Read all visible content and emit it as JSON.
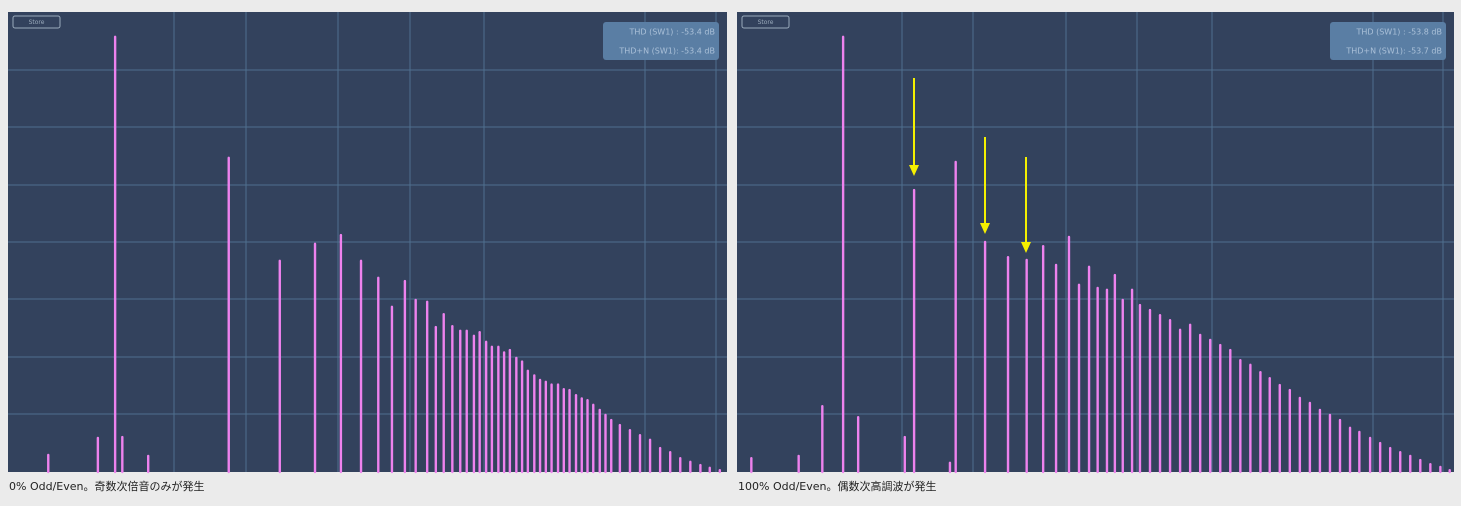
{
  "panels": [
    {
      "store_button": "Store",
      "thd": "THD (SW1) : -53.4 dB",
      "thdn": "THD+N (SW1): -53.4 dB",
      "caption": "0% Odd/Even。奇数次倍音のみが発生",
      "spectrum": {
        "xlim": [
          0,
          100
        ],
        "ylim": [
          0,
          100
        ],
        "x": [
          5.6,
          12.5,
          14.9,
          15.9,
          19.5,
          30.7,
          37.8,
          42.7,
          46.3,
          49.1,
          51.5,
          53.4,
          55.2,
          56.7,
          58.3,
          59.5,
          60.6,
          61.8,
          62.9,
          63.8,
          64.8,
          65.6,
          66.5,
          67.3,
          68.2,
          69.0,
          69.8,
          70.7,
          71.5,
          72.3,
          73.2,
          74.0,
          74.8,
          75.6,
          76.5,
          77.3,
          78.1,
          79.0,
          79.8,
          80.6,
          81.4,
          82.3,
          83.1,
          83.9,
          85.1,
          86.5,
          87.9,
          89.3,
          90.7,
          92.1,
          93.5,
          94.9,
          96.3,
          97.6,
          99.0
        ],
        "values": [
          3.7,
          7.4,
          94.6,
          7.6,
          3.5,
          68.3,
          45.9,
          49.6,
          51.5,
          45.9,
          42.2,
          35.9,
          41.5,
          37.4,
          37.0,
          31.5,
          34.3,
          31.7,
          30.7,
          30.7,
          29.6,
          30.4,
          28.3,
          27.2,
          27.2,
          26.0,
          26.5,
          24.8,
          24.0,
          22.0,
          21.0,
          20.0,
          19.6,
          19.0,
          19.0,
          18.0,
          17.8,
          16.7,
          16.0,
          15.6,
          14.6,
          13.5,
          12.4,
          11.3,
          10.2,
          9.1,
          8.0,
          7.0,
          5.2,
          4.3,
          3.0,
          2.2,
          1.5,
          0.9,
          0.4
        ]
      }
    },
    {
      "store_button": "Store",
      "thd": "THD (SW1) : -53.8 dB",
      "thdn": "THD+N (SW1): -53.7 dB",
      "caption": "100% Odd/Even。偶数次高調波が発生",
      "spectrum": {
        "xlim": [
          0,
          100
        ],
        "ylim": [
          0,
          100
        ],
        "x": [
          2.0,
          8.6,
          11.9,
          14.8,
          16.9,
          23.4,
          24.7,
          29.7,
          30.5,
          34.6,
          37.8,
          40.4,
          42.7,
          44.5,
          46.3,
          47.7,
          49.1,
          50.3,
          51.6,
          52.7,
          53.8,
          55.1,
          56.2,
          57.6,
          59.0,
          60.4,
          61.8,
          63.2,
          64.6,
          66.0,
          67.4,
          68.8,
          70.2,
          71.6,
          73.0,
          74.3,
          75.7,
          77.1,
          78.5,
          79.9,
          81.3,
          82.7,
          84.1,
          85.5,
          86.8,
          88.3,
          89.7,
          91.1,
          92.5,
          93.9,
          95.3,
          96.7,
          98.1,
          99.4
        ],
        "values": [
          3.0,
          3.5,
          14.3,
          94.6,
          11.9,
          7.6,
          61.3,
          2.0,
          67.4,
          50.0,
          46.7,
          46.1,
          49.1,
          45.0,
          51.1,
          40.7,
          44.6,
          40.0,
          39.6,
          42.8,
          37.4,
          39.6,
          36.3,
          35.2,
          34.1,
          33.0,
          30.9,
          32.0,
          29.8,
          28.7,
          27.6,
          26.5,
          24.3,
          23.3,
          21.7,
          20.4,
          18.9,
          17.8,
          16.1,
          15.0,
          13.5,
          12.4,
          11.3,
          9.6,
          8.7,
          7.4,
          6.3,
          5.2,
          4.3,
          3.5,
          2.6,
          1.7,
          1.1,
          0.4
        ]
      }
    }
  ]
}
